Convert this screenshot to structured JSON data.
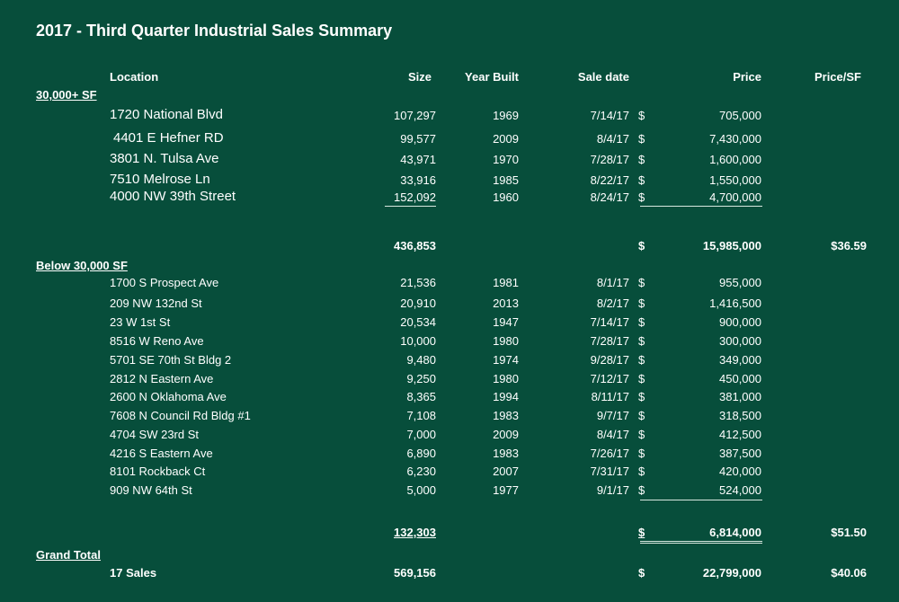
{
  "title": "2017 - Third Quarter Industrial Sales Summary",
  "headers": {
    "location": "Location",
    "size": "Size",
    "year_built": "Year Built",
    "sale_date": "Sale date",
    "price": "Price",
    "price_sf": "Price/SF"
  },
  "currency_symbol": "$",
  "section1": {
    "label": "30,000+ SF",
    "rows": [
      {
        "location": "1720 National Blvd",
        "size": "107,297",
        "year": "1969",
        "date": "7/14/17",
        "price": "705,000"
      },
      {
        "location": "4401 E Hefner RD",
        "size": "99,577",
        "year": "2009",
        "date": "8/4/17",
        "price": "7,430,000"
      },
      {
        "location": "3801 N. Tulsa Ave",
        "size": "43,971",
        "year": "1970",
        "date": "7/28/17",
        "price": "1,600,000"
      },
      {
        "location": "7510 Melrose Ln",
        "size": "33,916",
        "year": "1985",
        "date": "8/22/17",
        "price": "1,550,000"
      },
      {
        "location": "4000 NW 39th Street",
        "size": "152,092",
        "year": "1960",
        "date": "8/24/17",
        "price": "4,700,000"
      }
    ],
    "subtotal": {
      "size": "436,853",
      "price": "15,985,000",
      "price_sf": "$36.59"
    }
  },
  "section2": {
    "label": "Below 30,000 SF",
    "rows": [
      {
        "location": "1700 S Prospect Ave",
        "size": "21,536",
        "year": "1981",
        "date": "8/1/17",
        "price": "955,000"
      },
      {
        "location": "209 NW 132nd St",
        "size": "20,910",
        "year": "2013",
        "date": "8/2/17",
        "price": "1,416,500"
      },
      {
        "location": "23 W 1st St",
        "size": "20,534",
        "year": "1947",
        "date": "7/14/17",
        "price": "900,000"
      },
      {
        "location": "8516 W Reno Ave",
        "size": "10,000",
        "year": "1980",
        "date": "7/28/17",
        "price": "300,000"
      },
      {
        "location": "5701 SE 70th St Bldg 2",
        "size": "9,480",
        "year": "1974",
        "date": "9/28/17",
        "price": "349,000"
      },
      {
        "location": "2812 N Eastern Ave",
        "size": "9,250",
        "year": "1980",
        "date": "7/12/17",
        "price": "450,000"
      },
      {
        "location": "2600 N Oklahoma Ave",
        "size": "8,365",
        "year": "1994",
        "date": "8/11/17",
        "price": "381,000"
      },
      {
        "location": "7608 N Council Rd Bldg #1",
        "size": "7,108",
        "year": "1983",
        "date": "9/7/17",
        "price": "318,500"
      },
      {
        "location": "4704 SW 23rd St",
        "size": "7,000",
        "year": "2009",
        "date": "8/4/17",
        "price": "412,500"
      },
      {
        "location": "4216 S Eastern Ave",
        "size": "6,890",
        "year": "1983",
        "date": "7/26/17",
        "price": "387,500"
      },
      {
        "location": "8101 Rockback Ct",
        "size": "6,230",
        "year": "2007",
        "date": "7/31/17",
        "price": "420,000"
      },
      {
        "location": "909 NW 64th St",
        "size": "5,000",
        "year": "1977",
        "date": "9/1/17",
        "price": "524,000"
      }
    ],
    "subtotal": {
      "size": "132,303",
      "price": "6,814,000",
      "price_sf": "$51.50"
    }
  },
  "grand_total": {
    "label": "Grand Total",
    "sales_label": "17 Sales",
    "size": "569,156",
    "price": "22,799,000",
    "price_sf": "$40.06"
  }
}
